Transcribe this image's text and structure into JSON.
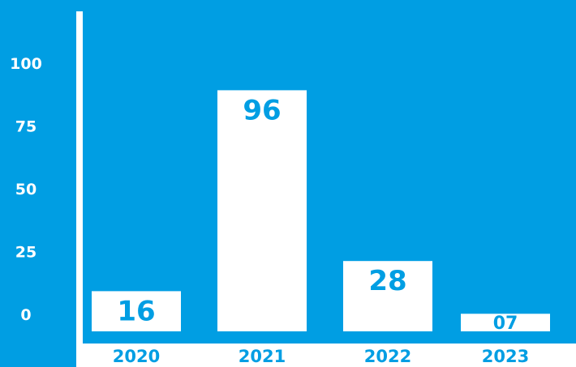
{
  "colors": {
    "background": "#009ee3",
    "bar": "#ffffff",
    "label": "#009ee3",
    "axis": "#ffffff"
  },
  "chart_data": {
    "type": "bar",
    "title": "",
    "xlabel": "",
    "ylabel": "",
    "categories": [
      "2020",
      "2021",
      "2022",
      "2023"
    ],
    "values": [
      16,
      96,
      28,
      7
    ],
    "data_labels": [
      "16",
      "96",
      "28",
      "07"
    ],
    "ylim": [
      0,
      100
    ],
    "yticks": [
      "0",
      "25",
      "50",
      "75",
      "100"
    ],
    "grid": false,
    "legend": "none"
  }
}
